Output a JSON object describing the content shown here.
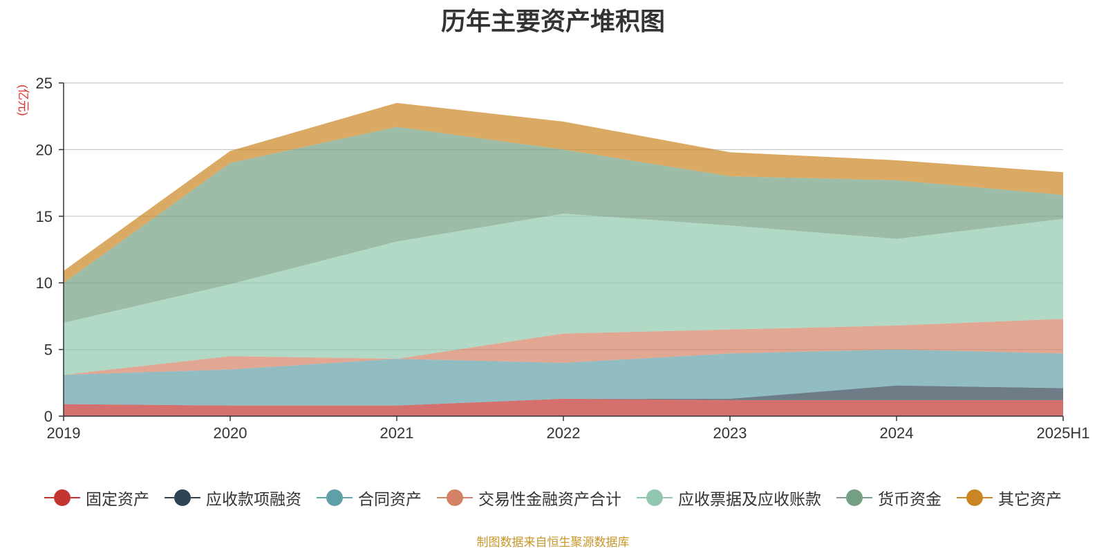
{
  "chart_data": {
    "type": "area",
    "stacked": true,
    "title": "历年主要资产堆积图",
    "ylabel": "(亿元)",
    "xlabel": "",
    "categories": [
      "2019",
      "2020",
      "2021",
      "2022",
      "2023",
      "2024",
      "2025H1"
    ],
    "ylim": [
      0,
      25
    ],
    "yticks": [
      0,
      5,
      10,
      15,
      20,
      25
    ],
    "grid": true,
    "legend_position": "bottom",
    "series": [
      {
        "name": "固定资产",
        "color": "#c23531",
        "values": [
          0.9,
          0.8,
          0.8,
          1.3,
          1.2,
          1.2,
          1.2
        ]
      },
      {
        "name": "应收款项融资",
        "color": "#2f4554",
        "values": [
          0.0,
          0.0,
          0.0,
          0.0,
          0.1,
          1.1,
          0.9
        ]
      },
      {
        "name": "合同资产",
        "color": "#61a0a8",
        "values": [
          2.2,
          2.7,
          3.5,
          2.7,
          3.4,
          2.7,
          2.6
        ]
      },
      {
        "name": "交易性金融资产合计",
        "color": "#d48265",
        "values": [
          0.0,
          1.0,
          0.0,
          2.2,
          1.8,
          1.8,
          2.6
        ]
      },
      {
        "name": "应收票据及应收账款",
        "color": "#91c7ae",
        "values": [
          3.9,
          5.4,
          8.8,
          9.0,
          7.8,
          6.5,
          7.5
        ]
      },
      {
        "name": "货币资金",
        "color": "#749f83",
        "values": [
          3.0,
          9.1,
          8.6,
          4.8,
          3.7,
          4.4,
          1.8
        ]
      },
      {
        "name": "其它资产",
        "color": "#ca8622",
        "values": [
          0.9,
          0.9,
          1.8,
          2.1,
          1.8,
          1.5,
          1.7
        ]
      }
    ]
  },
  "footer": {
    "source": "制图数据来自恒生聚源数据库"
  }
}
